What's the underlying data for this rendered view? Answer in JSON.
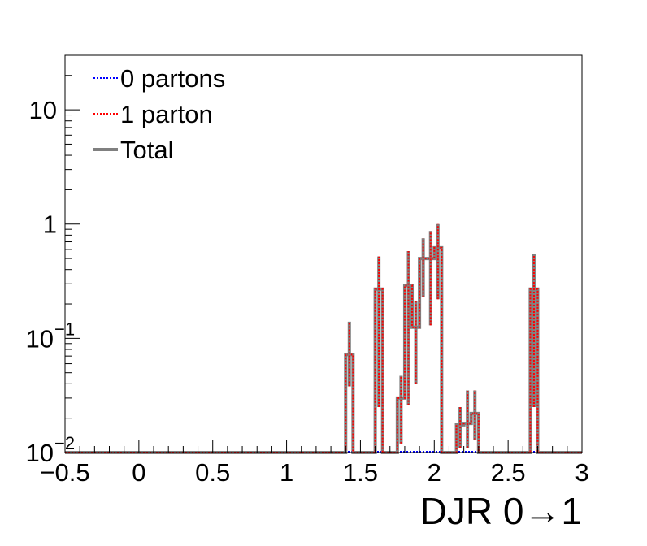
{
  "chart_data": {
    "type": "histogram",
    "xlabel": "DJR 0→1",
    "ylabel": "",
    "xlim": [
      -0.5,
      3.0
    ],
    "ylim": [
      0.01,
      30
    ],
    "yscale": "log",
    "grid": false,
    "legend_position": "top-left",
    "x_tick_labels": [
      "−0.5",
      "0",
      "0.5",
      "1",
      "1.5",
      "2",
      "2.5",
      "3"
    ],
    "x_tick_values": [
      -0.5,
      0,
      0.5,
      1,
      1.5,
      2,
      2.5,
      3
    ],
    "y_ticks": [
      {
        "value": 0.01,
        "base": "10",
        "exp": "−2"
      },
      {
        "value": 0.1,
        "base": "10",
        "exp": "−1"
      },
      {
        "value": 1,
        "base": "1",
        "exp": ""
      },
      {
        "value": 10,
        "base": "10",
        "exp": ""
      }
    ],
    "bin_width": 0.05,
    "series": [
      {
        "name": "0 partons",
        "color": "#0000ff",
        "style": "dotted",
        "bins": []
      },
      {
        "name": "1 parton",
        "color": "#ff0000",
        "style": "dotted",
        "bins": [
          {
            "x0": 1.4,
            "x1": 1.45,
            "y": 0.072,
            "lo": 0.038,
            "hi": 0.14
          },
          {
            "x0": 1.6,
            "x1": 1.65,
            "y": 0.27,
            "lo": 0.025,
            "hi": 0.52
          },
          {
            "x0": 1.75,
            "x1": 1.8,
            "y": 0.03,
            "lo": 0.012,
            "hi": 0.047
          },
          {
            "x0": 1.8,
            "x1": 1.85,
            "y": 0.29,
            "lo": 0.026,
            "hi": 0.58
          },
          {
            "x0": 1.85,
            "x1": 1.9,
            "y": 0.125,
            "lo": 0.04,
            "hi": 0.21
          },
          {
            "x0": 1.9,
            "x1": 1.95,
            "y": 0.5,
            "lo": 0.23,
            "hi": 0.75
          },
          {
            "x0": 1.95,
            "x1": 2.0,
            "y": 0.5,
            "lo": 0.13,
            "hi": 0.87
          },
          {
            "x0": 2.0,
            "x1": 2.05,
            "y": 0.62,
            "lo": 0.22,
            "hi": 1.0
          },
          {
            "x0": 2.15,
            "x1": 2.2,
            "y": 0.0175,
            "lo": 0.011,
            "hi": 0.025
          },
          {
            "x0": 2.2,
            "x1": 2.25,
            "y": 0.018,
            "lo": 0.011,
            "hi": 0.035
          },
          {
            "x0": 2.25,
            "x1": 2.3,
            "y": 0.022,
            "lo": 0.013,
            "hi": 0.035
          },
          {
            "x0": 2.65,
            "x1": 2.7,
            "y": 0.27,
            "lo": 0.025,
            "hi": 0.55
          }
        ]
      },
      {
        "name": "Total",
        "color": "#808080",
        "style": "solid",
        "bins": "same as 1 parton"
      }
    ]
  },
  "legend": {
    "items": [
      {
        "label": "0 partons",
        "color": "#0000ff",
        "style": "dotted"
      },
      {
        "label": "1 parton",
        "color": "#ff0000",
        "style": "dotted"
      },
      {
        "label": "Total",
        "color": "#808080",
        "style": "solid"
      }
    ]
  }
}
